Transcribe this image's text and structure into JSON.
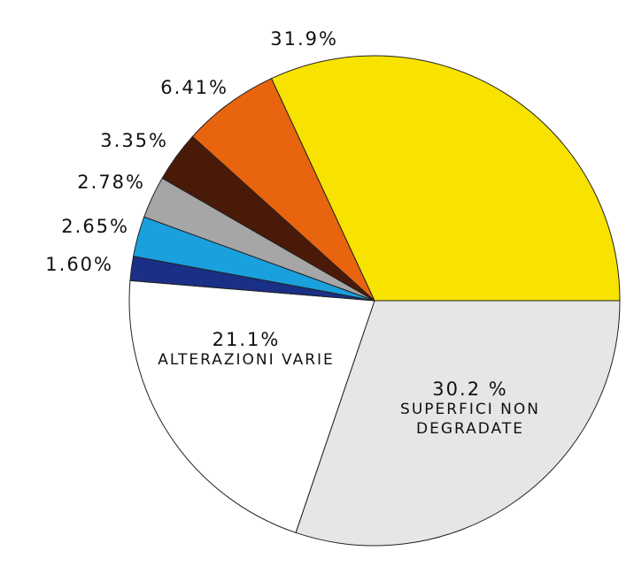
{
  "chart_data": {
    "type": "pie",
    "categories": [
      "SUPERFICI NON DEGRADATE",
      "ALTERAZIONI VARIE",
      null,
      null,
      null,
      null,
      null,
      null
    ],
    "values": [
      30.2,
      21.1,
      1.6,
      2.65,
      2.78,
      3.35,
      6.41,
      31.9
    ],
    "value_labels": [
      "30.2 %",
      "21.1%",
      "1.60%",
      "2.65%",
      "2.78%",
      "3.35%",
      "6.41%",
      "31.9%"
    ],
    "colors": [
      "#e6e6e6",
      "#ffffff",
      "#1a2f86",
      "#1aa0dc",
      "#a6a6a6",
      "#4a1a08",
      "#e8640f",
      "#f7e200"
    ]
  }
}
